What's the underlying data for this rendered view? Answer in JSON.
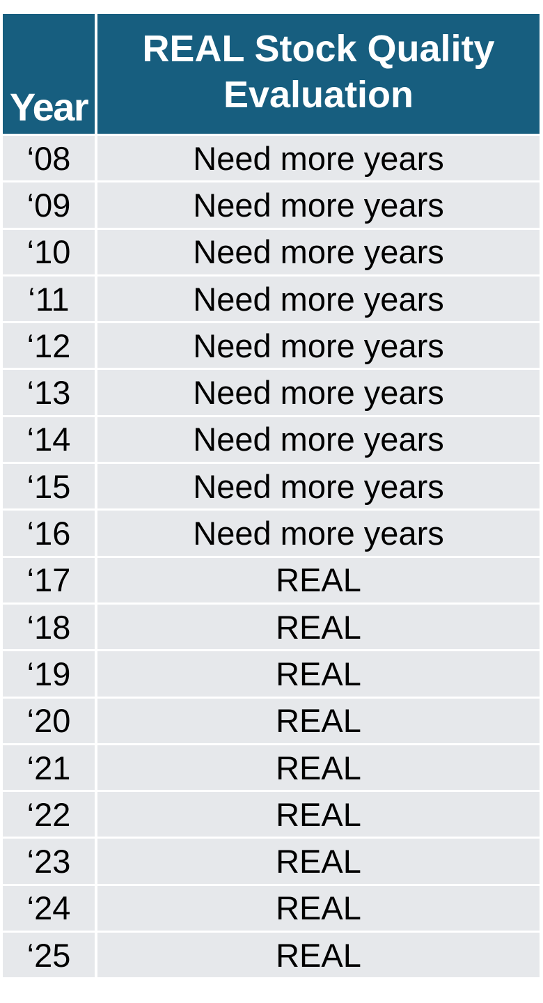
{
  "table": {
    "headers": {
      "year": "Year",
      "evaluation_line1": "REAL Stock Quality",
      "evaluation_line2": "Evaluation"
    },
    "header_color": "#175e7f",
    "cell_color": "#e6e8eb",
    "rows": [
      {
        "year": "‘08",
        "evaluation": "Need more years"
      },
      {
        "year": "‘09",
        "evaluation": "Need more years"
      },
      {
        "year": "‘10",
        "evaluation": "Need more years"
      },
      {
        "year": "‘11",
        "evaluation": "Need more years"
      },
      {
        "year": "‘12",
        "evaluation": "Need more years"
      },
      {
        "year": "‘13",
        "evaluation": "Need more years"
      },
      {
        "year": "‘14",
        "evaluation": "Need more years"
      },
      {
        "year": "‘15",
        "evaluation": "Need more years"
      },
      {
        "year": "‘16",
        "evaluation": "Need more years"
      },
      {
        "year": "‘17",
        "evaluation": "REAL"
      },
      {
        "year": "‘18",
        "evaluation": "REAL"
      },
      {
        "year": "‘19",
        "evaluation": "REAL"
      },
      {
        "year": "‘20",
        "evaluation": "REAL"
      },
      {
        "year": "‘21",
        "evaluation": "REAL"
      },
      {
        "year": "‘22",
        "evaluation": "REAL"
      },
      {
        "year": "‘23",
        "evaluation": "REAL"
      },
      {
        "year": "‘24",
        "evaluation": "REAL"
      },
      {
        "year": "‘25",
        "evaluation": "REAL"
      }
    ]
  }
}
